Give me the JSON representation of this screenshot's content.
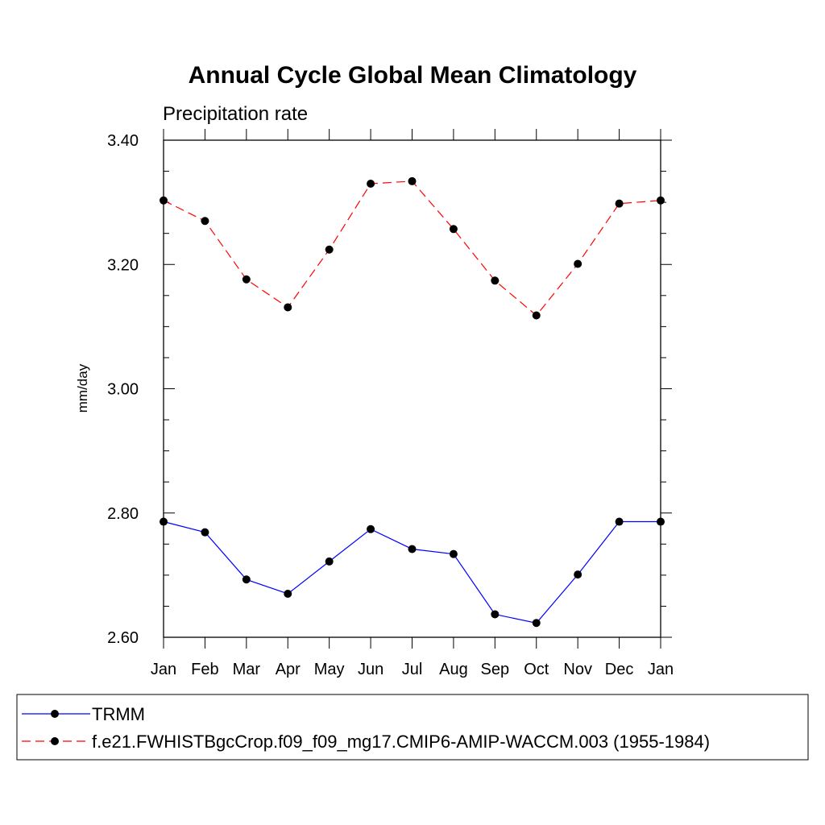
{
  "chart_data": {
    "type": "line",
    "title": "Annual Cycle Global Mean Climatology",
    "subtitle": "Precipitation rate",
    "xlabel": "",
    "ylabel": "mm/day",
    "categories": [
      "Jan",
      "Feb",
      "Mar",
      "Apr",
      "May",
      "Jun",
      "Jul",
      "Aug",
      "Sep",
      "Oct",
      "Nov",
      "Dec",
      "Jan"
    ],
    "ylim": [
      2.6,
      3.4
    ],
    "yticks": [
      "2.60",
      "2.80",
      "3.00",
      "3.20",
      "3.40"
    ],
    "grid": false,
    "legend_position": "bottom",
    "series": [
      {
        "name": "TRMM",
        "color": "#0000ff",
        "line_style": "solid",
        "values": [
          2.786,
          2.769,
          2.693,
          2.67,
          2.722,
          2.774,
          2.742,
          2.734,
          2.637,
          2.623,
          2.701,
          2.786,
          2.786
        ]
      },
      {
        "name": "f.e21.FWHISTBgcCrop.f09_f09_mg17.CMIP6-AMIP-WACCM.003 (1955-1984)",
        "color": "#ff0000",
        "line_style": "dashed",
        "values": [
          3.303,
          3.27,
          3.176,
          3.131,
          3.224,
          3.33,
          3.334,
          3.257,
          3.174,
          3.118,
          3.201,
          3.298,
          3.303
        ]
      }
    ]
  }
}
